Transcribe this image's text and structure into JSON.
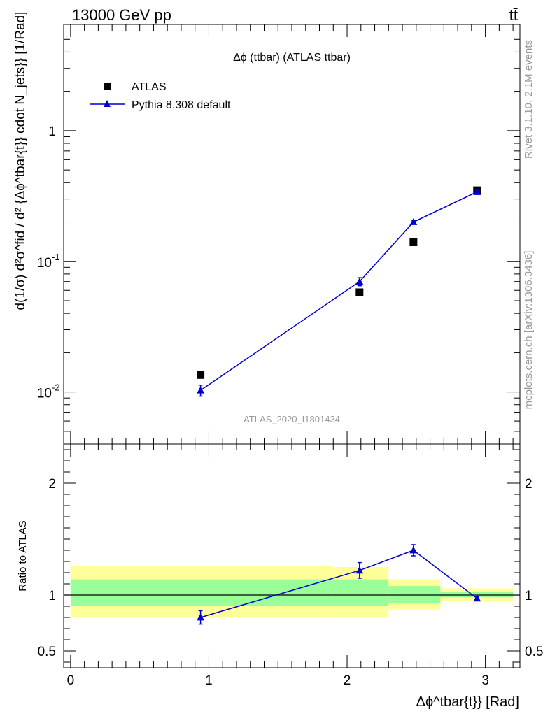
{
  "header": {
    "energy_label": "13000 GeV pp",
    "process_label": "tt̄"
  },
  "side_labels": {
    "rivet": "Rivet 3.1.10,  2.1M events",
    "mcplots": "mcplots.cern.ch [arXiv:1306.3436]"
  },
  "colors": {
    "mc": "#0000cc",
    "data": "#000000",
    "band_inner": "#99ff99",
    "band_outer": "#ffff99",
    "watermark": "#999999"
  },
  "chart_data": [
    {
      "type": "scatter",
      "title": "Δϕ (ttbar) (ATLAS ttbar)",
      "ylabel": "d(1/σ) d²σ^fid / d² {Δϕ^tbar{t}} cdot N_jets}} [1/Rad]",
      "watermark": "ATLAS_2020_I1801434",
      "yscale": "log",
      "xlim": [
        -0.05,
        3.25
      ],
      "ylim": [
        0.004,
        6.5
      ],
      "ytick_labels": [
        "10^-2",
        "10^-1",
        "1"
      ],
      "legend": {
        "placement": "top-left",
        "entries": [
          "ATLAS",
          "Pythia 8.308 default"
        ]
      },
      "series": [
        {
          "name": "ATLAS",
          "marker": "square",
          "x": [
            0.94,
            2.09,
            2.48,
            2.94
          ],
          "y": [
            0.0135,
            0.058,
            0.14,
            0.35
          ]
        },
        {
          "name": "Pythia 8.308 default",
          "marker": "triangle",
          "x": [
            0.94,
            2.09,
            2.48,
            2.94
          ],
          "y": [
            0.0103,
            0.07,
            0.2,
            0.34
          ],
          "yerr": [
            0.001,
            0.005,
            0.006,
            0.01
          ]
        }
      ]
    },
    {
      "type": "line",
      "ylabel": "Ratio to ATLAS",
      "xlabel": "Δϕ^tbar{t}} [Rad]",
      "xlim": [
        -0.05,
        3.25
      ],
      "ylim": [
        0.35,
        2.35
      ],
      "xticks": [
        0,
        1,
        2,
        3
      ],
      "xtick_labels": [
        "0",
        "1",
        "2",
        "3"
      ],
      "yticks": [
        0.5,
        1,
        2
      ],
      "ytick_labels": [
        "0.5",
        "1",
        "2"
      ],
      "bands": [
        {
          "x0": 0.0,
          "x1": 1.885,
          "inner": [
            0.9,
            1.14
          ],
          "outer": [
            0.8,
            1.26
          ]
        },
        {
          "x0": 1.885,
          "x1": 2.3,
          "inner": [
            0.9,
            1.14
          ],
          "outer": [
            0.8,
            1.25
          ]
        },
        {
          "x0": 2.3,
          "x1": 2.675,
          "inner": [
            0.93,
            1.08
          ],
          "outer": [
            0.87,
            1.14
          ]
        },
        {
          "x0": 2.675,
          "x1": 3.2,
          "inner": [
            0.98,
            1.03
          ],
          "outer": [
            0.95,
            1.06
          ]
        }
      ],
      "series": [
        {
          "name": "Pythia 8.308 default",
          "x": [
            0.94,
            2.09,
            2.48,
            2.94
          ],
          "y": [
            0.8,
            1.22,
            1.4,
            0.97
          ],
          "yerr": [
            0.06,
            0.07,
            0.05,
            0.015
          ]
        }
      ]
    }
  ]
}
